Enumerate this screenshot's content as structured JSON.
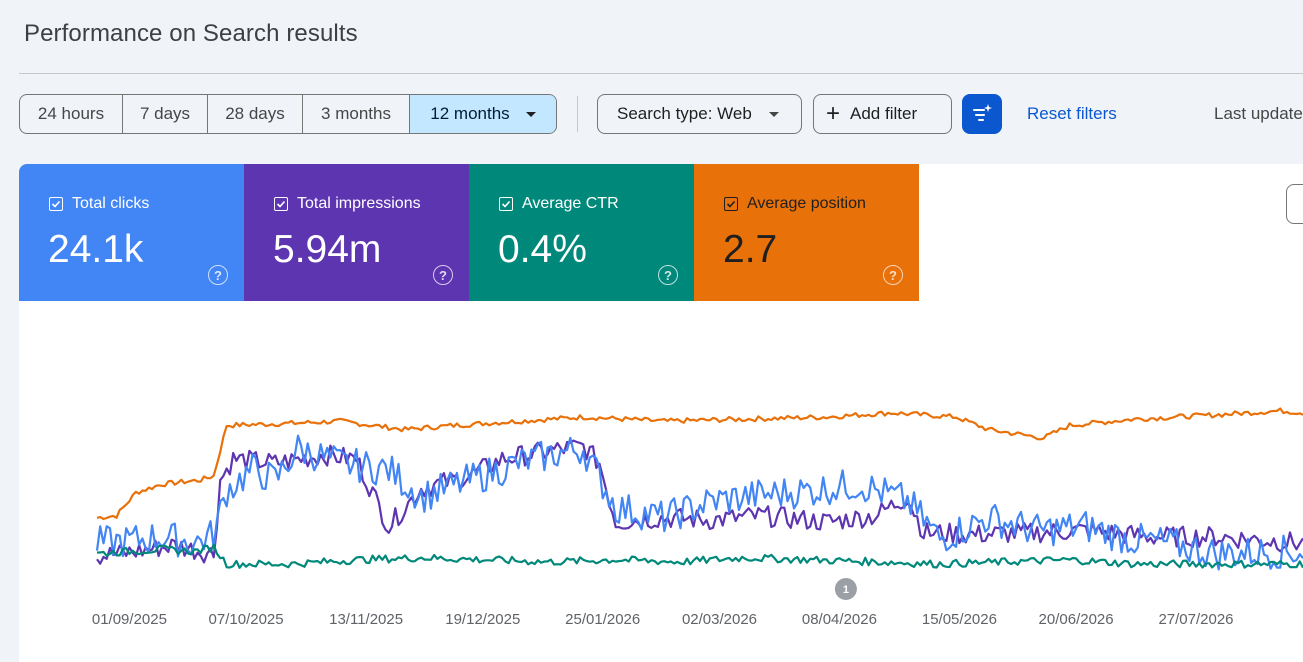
{
  "header": {
    "title": "Performance on Search results"
  },
  "date_range": {
    "options": [
      {
        "label": "24 hours",
        "active": false
      },
      {
        "label": "7 days",
        "active": false
      },
      {
        "label": "28 days",
        "active": false
      },
      {
        "label": "3 months",
        "active": false
      },
      {
        "label": "12 months",
        "active": true
      }
    ]
  },
  "filters": {
    "search_type_label": "Search type: Web",
    "add_filter_label": "Add filter",
    "filter_icon": "filter-sparkle-icon",
    "reset_label": "Reset filters",
    "last_updated_label": "Last updated"
  },
  "metrics": {
    "clicks": {
      "label": "Total clicks",
      "value": "24.1k",
      "color": "#4285f4",
      "checked": true
    },
    "impressions": {
      "label": "Total impressions",
      "value": "5.94m",
      "color": "#5e35b1",
      "checked": true
    },
    "ctr": {
      "label": "Average CTR",
      "value": "0.4%",
      "color": "#00897b",
      "checked": true
    },
    "position": {
      "label": "Average position",
      "value": "2.7",
      "color": "#e8710a",
      "checked": true
    }
  },
  "chart_data": {
    "type": "line",
    "x_tick_labels": [
      "01/09/2025",
      "07/10/2025",
      "13/11/2025",
      "19/12/2025",
      "25/01/2026",
      "02/03/2026",
      "08/04/2026",
      "15/05/2026",
      "20/06/2026",
      "27/07/2026"
    ],
    "x_range": [
      "22/08/2025",
      "20/08/2026"
    ],
    "annotation": {
      "label": "1",
      "date": "10/04/2026"
    },
    "grid": false,
    "series": [
      {
        "name": "Average position",
        "color": "#e8710a",
        "relative_level": [
          [
            0,
            0.22
          ],
          [
            6,
            0.23
          ],
          [
            12,
            0.34
          ],
          [
            20,
            0.38
          ],
          [
            32,
            0.4
          ],
          [
            36,
            0.42
          ],
          [
            40,
            0.66
          ],
          [
            60,
            0.67
          ],
          [
            75,
            0.68
          ],
          [
            95,
            0.64
          ],
          [
            110,
            0.66
          ],
          [
            130,
            0.68
          ],
          [
            150,
            0.7
          ],
          [
            175,
            0.68
          ],
          [
            200,
            0.69
          ],
          [
            225,
            0.7
          ],
          [
            245,
            0.72
          ],
          [
            265,
            0.7
          ],
          [
            275,
            0.64
          ],
          [
            292,
            0.6
          ],
          [
            300,
            0.66
          ],
          [
            320,
            0.69
          ],
          [
            345,
            0.71
          ],
          [
            365,
            0.73
          ],
          [
            372,
            0.72
          ]
        ]
      },
      {
        "name": "Total impressions",
        "color": "#5e35b1",
        "relative_level": [
          [
            0,
            0.04
          ],
          [
            8,
            0.05
          ],
          [
            16,
            0.07
          ],
          [
            24,
            0.09
          ],
          [
            32,
            0.06
          ],
          [
            36,
            0.05
          ],
          [
            38,
            0.4
          ],
          [
            42,
            0.5
          ],
          [
            55,
            0.48
          ],
          [
            70,
            0.52
          ],
          [
            80,
            0.5
          ],
          [
            90,
            0.18
          ],
          [
            100,
            0.36
          ],
          [
            115,
            0.42
          ],
          [
            125,
            0.5
          ],
          [
            140,
            0.54
          ],
          [
            150,
            0.56
          ],
          [
            155,
            0.48
          ],
          [
            160,
            0.2
          ],
          [
            175,
            0.22
          ],
          [
            190,
            0.21
          ],
          [
            205,
            0.23
          ],
          [
            225,
            0.2
          ],
          [
            240,
            0.23
          ],
          [
            250,
            0.32
          ],
          [
            255,
            0.15
          ],
          [
            270,
            0.14
          ],
          [
            290,
            0.15
          ],
          [
            305,
            0.16
          ],
          [
            325,
            0.13
          ],
          [
            345,
            0.13
          ],
          [
            372,
            0.1
          ]
        ]
      },
      {
        "name": "Total clicks",
        "color": "#4285f4",
        "relative_level": [
          [
            0,
            0.1
          ],
          [
            10,
            0.11
          ],
          [
            20,
            0.13
          ],
          [
            30,
            0.1
          ],
          [
            36,
            0.14
          ],
          [
            40,
            0.35
          ],
          [
            48,
            0.45
          ],
          [
            55,
            0.4
          ],
          [
            62,
            0.55
          ],
          [
            75,
            0.48
          ],
          [
            90,
            0.45
          ],
          [
            100,
            0.32
          ],
          [
            115,
            0.4
          ],
          [
            130,
            0.48
          ],
          [
            140,
            0.52
          ],
          [
            150,
            0.55
          ],
          [
            160,
            0.27
          ],
          [
            175,
            0.22
          ],
          [
            190,
            0.3
          ],
          [
            205,
            0.33
          ],
          [
            220,
            0.35
          ],
          [
            235,
            0.38
          ],
          [
            250,
            0.3
          ],
          [
            260,
            0.12
          ],
          [
            275,
            0.22
          ],
          [
            290,
            0.16
          ],
          [
            305,
            0.18
          ],
          [
            318,
            0.12
          ],
          [
            330,
            0.1
          ],
          [
            345,
            0.05
          ],
          [
            372,
            0.06
          ]
        ]
      },
      {
        "name": "Average CTR",
        "color": "#00897b",
        "relative_level": [
          [
            0,
            0.05
          ],
          [
            10,
            0.06
          ],
          [
            20,
            0.07
          ],
          [
            30,
            0.06
          ],
          [
            36,
            0.08
          ],
          [
            40,
            0.0
          ],
          [
            60,
            0.0
          ],
          [
            80,
            0.02
          ],
          [
            100,
            0.03
          ],
          [
            120,
            0.02
          ],
          [
            140,
            0.01
          ],
          [
            160,
            0.02
          ],
          [
            180,
            0.01
          ],
          [
            200,
            0.03
          ],
          [
            220,
            0.02
          ],
          [
            240,
            0.01
          ],
          [
            260,
            0.0
          ],
          [
            280,
            0.01
          ],
          [
            300,
            0.02
          ],
          [
            320,
            0.0
          ],
          [
            340,
            0.0
          ],
          [
            372,
            0.0
          ]
        ]
      }
    ]
  }
}
